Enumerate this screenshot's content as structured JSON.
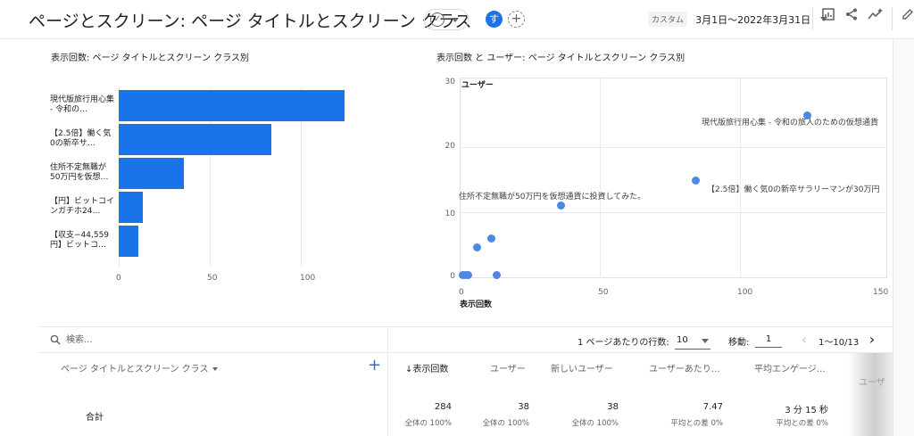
{
  "header": {
    "title": "ページとスクリーン: ページ タイトルとスクリーン クラス",
    "avatar_letter": "す",
    "add_comparison": "+",
    "date_chip": "カスタム",
    "date_range": "3月1日〜2022年3月31日"
  },
  "icons": {
    "status": "check-circle-icon",
    "customize": "edit-report-icon",
    "share": "share-icon",
    "insights": "insights-icon",
    "edit": "pencil-icon"
  },
  "bar_card": {
    "title": "表示回数: ページ タイトルとスクリーン クラス別",
    "labels": [
      "現代版旅行用心集 - 令和の…",
      "【2.5倍】働く気0の新卒サ…",
      "住所不定無職が50万円を仮想…",
      "【円】ビットコインガチホ24…",
      "【収支−44,559円】ビットコ…"
    ],
    "ticks": [
      "0",
      "50",
      "100"
    ]
  },
  "scatter_card": {
    "title": "表示回数 と ユーザー: ページ タイトルとスクリーン クラス別",
    "yaxis_name": "ユーザー",
    "xaxis_name": "表示回数",
    "yticks": [
      "30",
      "20",
      "10",
      "0"
    ],
    "xticks": [
      "0",
      "50",
      "100",
      "150"
    ],
    "point_labels": [
      "現代版旅行用心集 - 令和の旅人のための仮想通貨",
      "【2.5倍】働く気0の新卒サラリーマンが30万円",
      "住所不定無職が50万円を仮想通貨に投資してみた。"
    ]
  },
  "chart_data": [
    {
      "type": "bar",
      "title": "表示回数: ページ タイトルとスクリーン クラス別",
      "categories": [
        "現代版旅行用心集 - 令和の…",
        "【2.5倍】働く気0の新卒サ…",
        "住所不定無職が50万円を仮想…",
        "【円】ビットコインガチホ24…",
        "【収支−44,559円】ビットコ…"
      ],
      "values": [
        124,
        84,
        36,
        13,
        11
      ],
      "xlim": [
        0,
        130
      ],
      "orientation": "horizontal"
    },
    {
      "type": "scatter",
      "title": "表示回数 と ユーザー: ページ タイトルとスクリーン クラス別",
      "xlabel": "表示回数",
      "ylabel": "ユーザー",
      "xlim": [
        0,
        150
      ],
      "ylim": [
        0,
        30
      ],
      "points": [
        {
          "x": 124,
          "y": 25
        },
        {
          "x": 84,
          "y": 15
        },
        {
          "x": 36,
          "y": 11
        },
        {
          "x": 11,
          "y": 6
        },
        {
          "x": 6,
          "y": 4.5
        },
        {
          "x": 13,
          "y": 0.3
        },
        {
          "x": 1,
          "y": 0.3
        },
        {
          "x": 2,
          "y": 0.3
        },
        {
          "x": 3,
          "y": 0.3
        }
      ]
    }
  ],
  "toolbar": {
    "search_placeholder": "検索...",
    "rows_label": "1 ページあたりの行数:",
    "rows_value": "10",
    "goto_label": "移動:",
    "goto_value": "1",
    "range": "1〜10/13",
    "prev": "‹",
    "next": "›"
  },
  "table": {
    "dimension_header": "ページ タイトルとスクリーン クラス",
    "add_dimension": "+",
    "columns": [
      "↓表示回数",
      "ユーザー",
      "新しいユーザー",
      "ユーザーあたり…",
      "平均エンゲージ…"
    ],
    "ghost_column": "ユーザ",
    "total_label": "合計",
    "totals": [
      "284",
      "38",
      "38",
      "7.47",
      "3 分 15 秒"
    ],
    "total_subs": [
      "全体の 100%",
      "全体の 100%",
      "全体の 100%",
      "平均との差 0%",
      "平均との差 0%"
    ]
  }
}
